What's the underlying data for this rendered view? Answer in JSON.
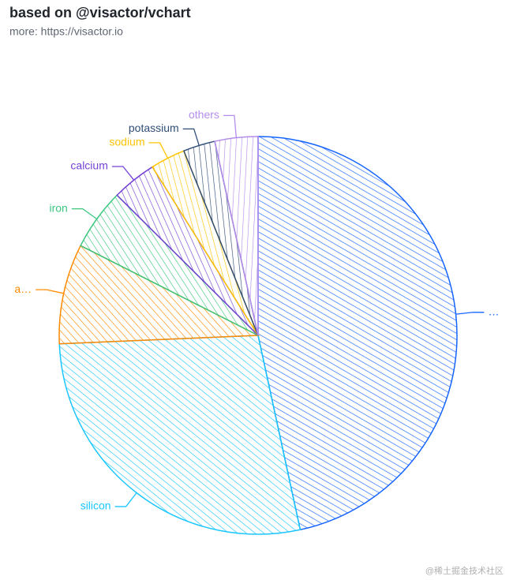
{
  "chart_data": {
    "type": "pie",
    "title": "based on @visactor/vchart",
    "subtitle": "more: https://visactor.io",
    "categories": [
      "…",
      "silicon",
      "a…",
      "iron",
      "calcium",
      "sodium",
      "potassium",
      "others"
    ],
    "values": [
      46.6,
      27.72,
      8.13,
      5,
      3.63,
      2.83,
      2.59,
      3.5
    ],
    "colors": [
      "#1664FF",
      "#1AC6FF",
      "#FF8A00",
      "#3CC780",
      "#7442D4",
      "#FFC400",
      "#304D77",
      "#B48DEB"
    ]
  },
  "watermark": "@稀土掘金技术社区"
}
